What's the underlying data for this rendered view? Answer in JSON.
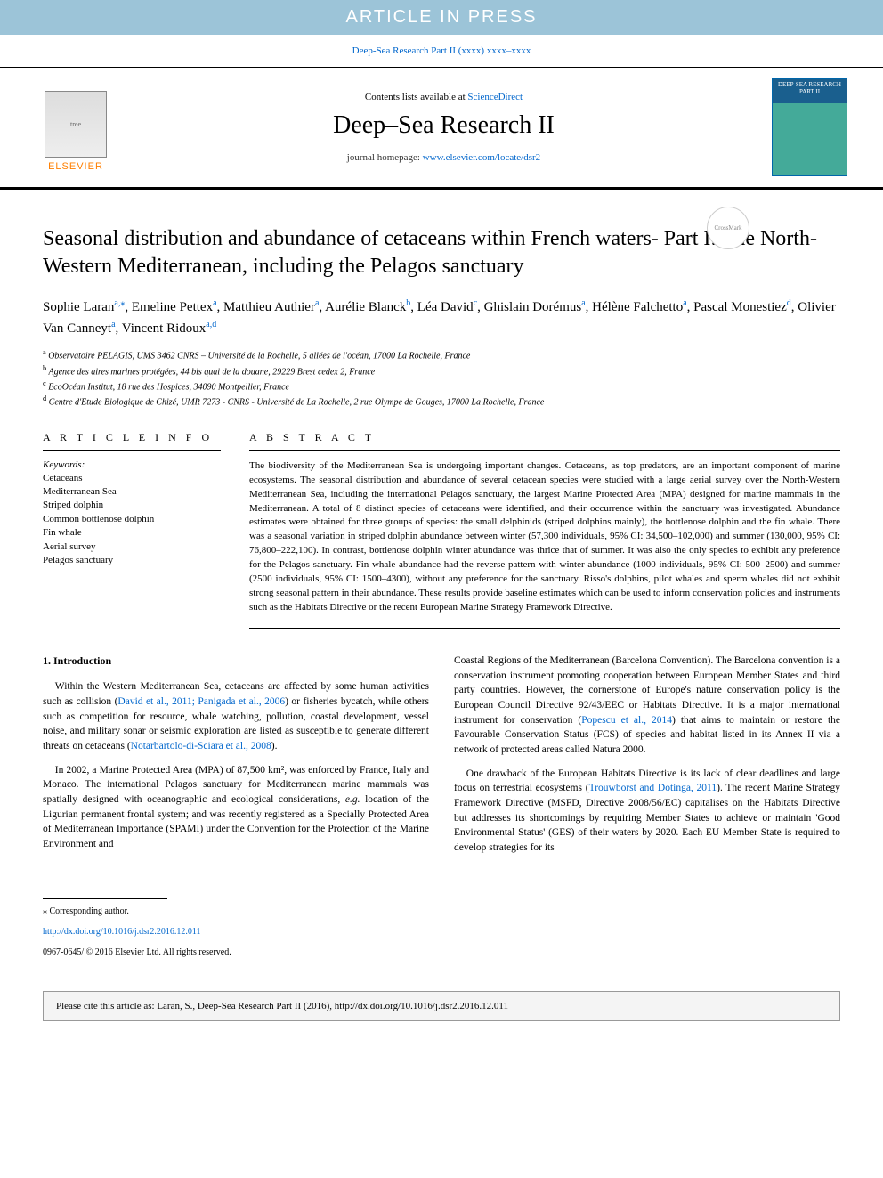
{
  "banner": "ARTICLE IN PRESS",
  "journalRef": "Deep-Sea Research Part II  (xxxx) xxxx–xxxx",
  "header": {
    "contentsPrefix": "Contents lists available at ",
    "contentsLink": "ScienceDirect",
    "journalName": "Deep–Sea Research II",
    "homepagePrefix": "journal homepage: ",
    "homepageUrl": "www.elsevier.com/locate/dsr2",
    "elsevier": "ELSEVIER",
    "coverLabel": "DEEP-SEA RESEARCH PART II"
  },
  "title": "Seasonal distribution and abundance of cetaceans within French waters- Part I: The North-Western Mediterranean, including the Pelagos sanctuary",
  "authors": [
    {
      "name": "Sophie Laran",
      "affil": "a,",
      "mark": "⁎"
    },
    {
      "name": "Emeline Pettex",
      "affil": "a"
    },
    {
      "name": "Matthieu Authier",
      "affil": "a"
    },
    {
      "name": "Aurélie Blanck",
      "affil": "b"
    },
    {
      "name": "Léa David",
      "affil": "c"
    },
    {
      "name": "Ghislain Dorémus",
      "affil": "a"
    },
    {
      "name": "Hélène Falchetto",
      "affil": "a"
    },
    {
      "name": "Pascal Monestiez",
      "affil": "d"
    },
    {
      "name": "Olivier Van Canneyt",
      "affil": "a"
    },
    {
      "name": "Vincent Ridoux",
      "affil": "a,d"
    }
  ],
  "affiliations": [
    {
      "key": "a",
      "text": "Observatoire PELAGIS, UMS 3462 CNRS – Université de la Rochelle, 5 allées de l'océan, 17000 La Rochelle, France"
    },
    {
      "key": "b",
      "text": "Agence des aires marines protégées, 44 bis quai de la douane, 29229 Brest cedex 2, France"
    },
    {
      "key": "c",
      "text": "EcoOcéan Institut, 18 rue des Hospices, 34090 Montpellier, France"
    },
    {
      "key": "d",
      "text": "Centre d'Etude Biologique de Chizé, UMR 7273 - CNRS - Université de La Rochelle, 2 rue Olympe de Gouges, 17000 La Rochelle, France"
    }
  ],
  "info": {
    "heading": "A R T I C L E  I N F O",
    "keywordsLabel": "Keywords:",
    "keywords": [
      "Cetaceans",
      "Mediterranean Sea",
      "Striped dolphin",
      "Common bottlenose dolphin",
      "Fin whale",
      "Aerial survey",
      "Pelagos sanctuary"
    ]
  },
  "abstract": {
    "heading": "A B S T R A C T",
    "text": "The biodiversity of the Mediterranean Sea is undergoing important changes. Cetaceans, as top predators, are an important component of marine ecosystems. The seasonal distribution and abundance of several cetacean species were studied with a large aerial survey over the North-Western Mediterranean Sea, including the international Pelagos sanctuary, the largest Marine Protected Area (MPA) designed for marine mammals in the Mediterranean. A total of 8 distinct species of cetaceans were identified, and their occurrence within the sanctuary was investigated. Abundance estimates were obtained for three groups of species: the small delphinids (striped dolphins mainly), the bottlenose dolphin and the fin whale. There was a seasonal variation in striped dolphin abundance between winter (57,300 individuals, 95% CI: 34,500–102,000) and summer (130,000, 95% CI: 76,800–222,100). In contrast, bottlenose dolphin winter abundance was thrice that of summer. It was also the only species to exhibit any preference for the Pelagos sanctuary. Fin whale abundance had the reverse pattern with winter abundance (1000 individuals, 95% CI: 500–2500) and summer (2500 individuals, 95% CI: 1500–4300), without any preference for the sanctuary. Risso's dolphins, pilot whales and sperm whales did not exhibit strong seasonal pattern in their abundance. These results provide baseline estimates which can be used to inform conservation policies and instruments such as the Habitats Directive or the recent European Marine Strategy Framework Directive."
  },
  "intro": {
    "heading": "1. Introduction",
    "p1a": "Within the Western Mediterranean Sea, cetaceans are affected by some human activities such as collision (",
    "p1link1": "David et al., 2011; Panigada et al., 2006",
    "p1b": ") or fisheries bycatch, while others such as competition for resource, whale watching, pollution, coastal development, vessel noise, and military sonar or seismic exploration are listed as susceptible to generate different threats on cetaceans (",
    "p1link2": "Notarbartolo-di-Sciara et al., 2008",
    "p1c": ").",
    "p2a": "In 2002, a Marine Protected Area (MPA) of 87,500 km², was enforced by France, Italy and Monaco. The international Pelagos sanctuary for Mediterranean marine mammals was spatially designed with oceanographic and ecological considerations, ",
    "p2i": "e.g.",
    "p2b": " location of the Ligurian permanent frontal system; and was recently registered as a Specially Protected Area of Mediterranean Importance (SPAMI) under the Convention for the Protection of the Marine Environment and ",
    "p3a": "Coastal Regions of the Mediterranean (Barcelona Convention). The Barcelona convention is a conservation instrument promoting cooperation between European Member States and third party countries. However, the cornerstone of Europe's nature conservation policy is the European Council Directive 92/43/EEC or Habitats Directive. It is a major international instrument for conservation (",
    "p3link1": "Popescu et al., 2014",
    "p3b": ") that aims to maintain or restore the Favourable Conservation Status (FCS) of species and habitat listed in its Annex II via a network of protected areas called Natura 2000.",
    "p4a": "One drawback of the European Habitats Directive is its lack of clear deadlines and large focus on terrestrial ecosystems (",
    "p4link1": "Trouwborst and Dotinga, 2011",
    "p4b": "). The recent Marine Strategy Framework Directive (MSFD, Directive 2008/56/EC) capitalises on the Habitats Directive but addresses its shortcomings by requiring Member States to achieve or maintain 'Good Environmental Status' (GES) of their waters by 2020. Each EU Member State is required to develop strategies for its"
  },
  "footer": {
    "corresponding": "⁎ Corresponding author.",
    "doi": "http://dx.doi.org/10.1016/j.dsr2.2016.12.011",
    "copyright": "0967-0645/ © 2016 Elsevier Ltd. All rights reserved."
  },
  "citeBox": "Please cite this article as: Laran, S., Deep-Sea Research Part II (2016), http://dx.doi.org/10.1016/j.dsr2.2016.12.011"
}
